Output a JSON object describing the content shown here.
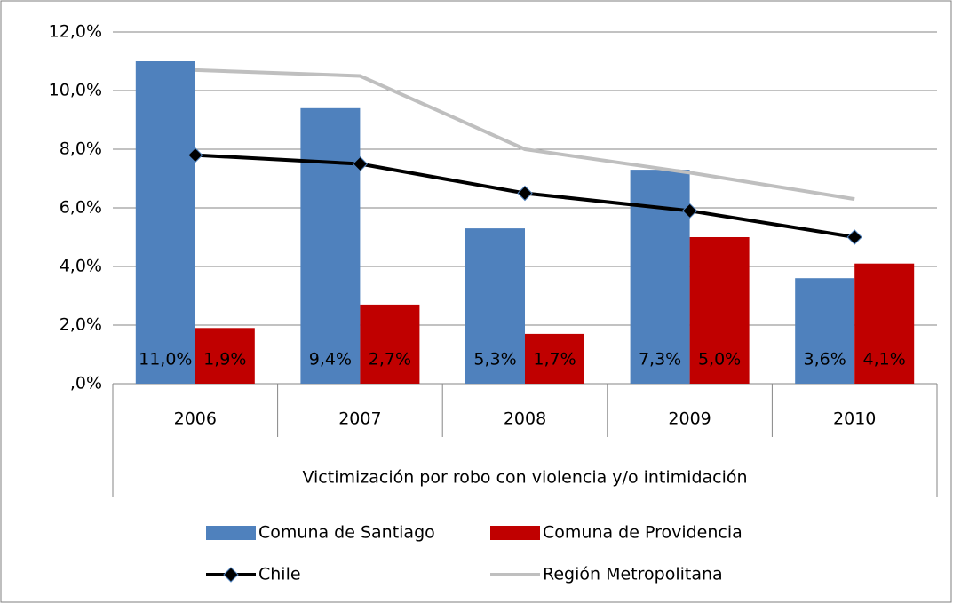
{
  "chart_data": {
    "type": "bar",
    "xlabel": "Victimización por robo con violencia y/o intimidación",
    "categories": [
      "2006",
      "2007",
      "2008",
      "2009",
      "2010"
    ],
    "series": [
      {
        "name": "Comuna de Santiago",
        "type": "bar",
        "color": "#4f81bd",
        "values": [
          11.0,
          9.4,
          5.3,
          7.3,
          3.6
        ],
        "value_labels": [
          "11,0%",
          "9,4%",
          "5,3%",
          "7,3%",
          "3,6%"
        ]
      },
      {
        "name": "Comuna de Providencia",
        "type": "bar",
        "color": "#c00000",
        "values": [
          1.9,
          2.7,
          1.7,
          5.0,
          4.1
        ],
        "value_labels": [
          "1,9%",
          "2,7%",
          "1,7%",
          "5,0%",
          "4,1%"
        ]
      },
      {
        "name": "Chile",
        "type": "line",
        "color": "#000000",
        "marker": "diamond",
        "values": [
          7.8,
          7.5,
          6.5,
          5.9,
          5.0
        ]
      },
      {
        "name": "Región Metropolitana",
        "type": "line",
        "color": "#bfbfbf",
        "values": [
          10.7,
          10.5,
          8.0,
          7.2,
          6.3
        ]
      }
    ],
    "ylim": [
      0,
      12
    ],
    "yticks": [
      {
        "value": 0,
        "label": ",0%"
      },
      {
        "value": 2,
        "label": "2,0%"
      },
      {
        "value": 4,
        "label": "4,0%"
      },
      {
        "value": 6,
        "label": "6,0%"
      },
      {
        "value": 8,
        "label": "8,0%"
      },
      {
        "value": 10,
        "label": "10,0%"
      },
      {
        "value": 12,
        "label": "12,0%"
      }
    ],
    "grid": true
  }
}
